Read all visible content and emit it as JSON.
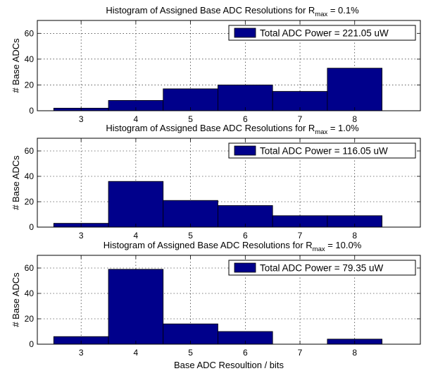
{
  "chart_data": [
    {
      "type": "bar",
      "title_prefix": "Histogram of Assigned Base ADC Resolutions for R",
      "title_sub": "max",
      "title_suffix": " = 0.1%",
      "categories": [
        "3",
        "4",
        "5",
        "6",
        "7",
        "8"
      ],
      "x": [
        3,
        4,
        5,
        6,
        7,
        8
      ],
      "values": [
        2,
        8,
        17,
        20,
        15,
        33
      ],
      "ylabel": "# Base ADCs",
      "xlabel": "",
      "ylim": [
        0,
        70
      ],
      "yticks": [
        0,
        20,
        40,
        60
      ],
      "grid": true,
      "legend": {
        "label": "Total ADC Power  = 221.05 uW",
        "placement": "top-right"
      },
      "color": "#00008b"
    },
    {
      "type": "bar",
      "title_prefix": "Histogram of Assigned Base ADC Resolutions for R",
      "title_sub": "max",
      "title_suffix": " = 1.0%",
      "categories": [
        "3",
        "4",
        "5",
        "6",
        "7",
        "8"
      ],
      "x": [
        3,
        4,
        5,
        6,
        7,
        8
      ],
      "values": [
        3,
        36,
        21,
        17,
        9,
        9
      ],
      "ylabel": "# Base ADCs",
      "xlabel": "",
      "ylim": [
        0,
        70
      ],
      "yticks": [
        0,
        20,
        40,
        60
      ],
      "grid": true,
      "legend": {
        "label": "Total ADC Power  = 116.05 uW",
        "placement": "top-right"
      },
      "color": "#00008b"
    },
    {
      "type": "bar",
      "title_prefix": "Histogram of Assigned Base ADC Resolutions for R",
      "title_sub": "max",
      "title_suffix": " = 10.0%",
      "categories": [
        "3",
        "4",
        "5",
        "6",
        "7",
        "8"
      ],
      "x": [
        3,
        4,
        5,
        6,
        7,
        8
      ],
      "values": [
        6,
        59,
        16,
        10,
        0,
        4
      ],
      "ylabel": "# Base ADCs",
      "xlabel": "Base ADC Resoultion / bits",
      "ylim": [
        0,
        70
      ],
      "yticks": [
        0,
        20,
        40,
        60
      ],
      "grid": true,
      "legend": {
        "label": "Total ADC Power  = 79.35 uW",
        "placement": "top-right"
      },
      "color": "#00008b"
    }
  ]
}
